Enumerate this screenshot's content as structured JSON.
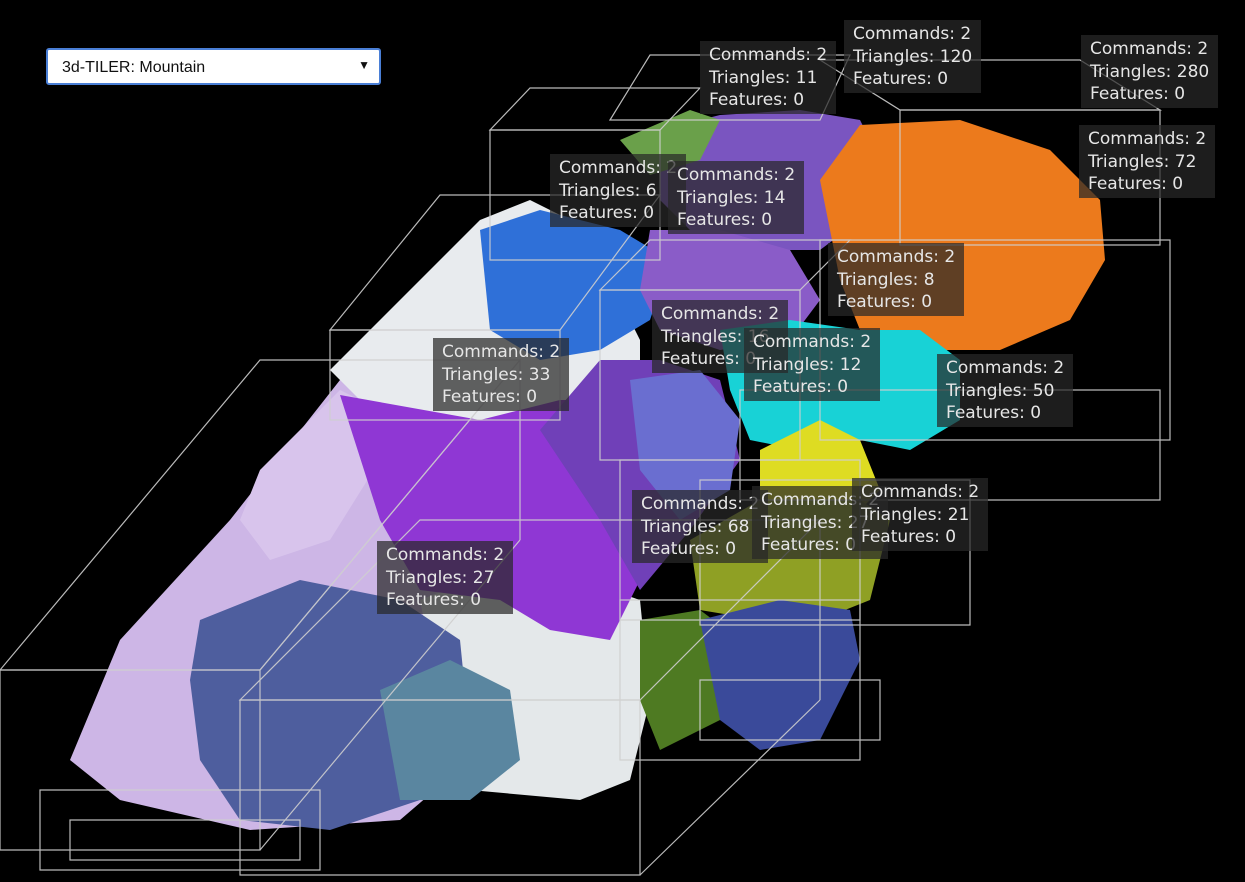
{
  "tileset_selector": {
    "selected": "3d-TILER: Mountain",
    "arrow": "▼"
  },
  "labels": [
    {
      "commands": "Commands: 2",
      "triangles": "Triangles: 120",
      "features": "Features: 0"
    },
    {
      "commands": "Commands: 2",
      "triangles": "Triangles: 11",
      "features": "Features: 0"
    },
    {
      "commands": "Commands: 2",
      "triangles": "Triangles: 280",
      "features": "Features: 0"
    },
    {
      "commands": "Commands: 2",
      "triangles": "Triangles: 72",
      "features": "Features: 0"
    },
    {
      "commands": "Commands: 2",
      "triangles": "Triangles: 6",
      "features": "Features: 0"
    },
    {
      "commands": "Commands: 2",
      "triangles": "Triangles: 14",
      "features": "Features: 0"
    },
    {
      "commands": "Commands: 2",
      "triangles": "Triangles: 8",
      "features": "Features: 0"
    },
    {
      "commands": "Commands: 2",
      "triangles": "Triangles: 16",
      "features": "Features: 0"
    },
    {
      "commands": "Commands: 2",
      "triangles": "Triangles: 12",
      "features": "Features: 0"
    },
    {
      "commands": "Commands: 2",
      "triangles": "Triangles: 33",
      "features": "Features: 0"
    },
    {
      "commands": "Commands: 2",
      "triangles": "Triangles: 50",
      "features": "Features: 0"
    },
    {
      "commands": "Commands: 2",
      "triangles": "Triangles: 68",
      "features": "Features: 0"
    },
    {
      "commands": "Commands: 2",
      "triangles": "Triangles: 27",
      "features": "Features: 0"
    },
    {
      "commands": "Commands: 2",
      "triangles": "Triangles: 21",
      "features": "Features: 0"
    },
    {
      "commands": "Commands: 2",
      "triangles": "Triangles: 27",
      "features": "Features: 0"
    }
  ],
  "colors": {
    "background": "#000000",
    "bounding_box": "#cfcfcf",
    "selector_border": "#4a7fd6",
    "label_background": "#282828",
    "tile_colors": [
      "#d9c6ea",
      "#e9eeee",
      "#8a2fd0",
      "#2a6fd6",
      "#7a5cc4",
      "#f07a18",
      "#1ad6d6",
      "#e0e026",
      "#7f9a1e",
      "#3c4aa6",
      "#c9a6e6"
    ]
  }
}
